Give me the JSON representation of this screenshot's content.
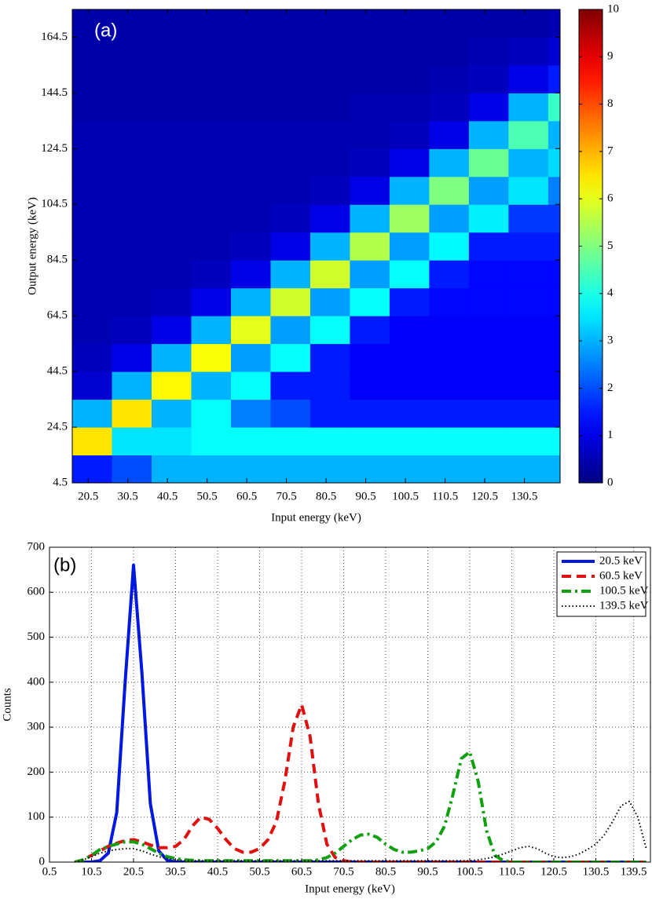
{
  "chart_data": [
    {
      "type": "heatmap",
      "annotation": "(a)",
      "xlabel": "Input energy (keV)",
      "ylabel": "Output energy (keV)",
      "xlim": [
        16.5,
        139.5
      ],
      "ylim": [
        4.5,
        174.5
      ],
      "xticks": [
        20.5,
        30.5,
        40.5,
        50.5,
        60.5,
        70.5,
        80.5,
        90.5,
        100.5,
        110.5,
        120.5,
        130.5
      ],
      "yticks": [
        4.5,
        24.5,
        44.5,
        64.5,
        84.5,
        104.5,
        124.5,
        144.5,
        164.5
      ],
      "colormap": "jet",
      "zlim": [
        0,
        10
      ],
      "zticks": [
        0,
        1,
        2,
        3,
        4,
        5,
        6,
        7,
        8,
        9,
        10
      ],
      "xbins": [
        16.5,
        26.5,
        36.5,
        46.5,
        56.5,
        66.5,
        76.5,
        86.5,
        96.5,
        106.5,
        116.5,
        126.5,
        136.5,
        139.5
      ],
      "ybins": [
        4.5,
        14.5,
        24.5,
        34.5,
        44.5,
        54.5,
        64.5,
        74.5,
        84.5,
        94.5,
        104.5,
        114.5,
        124.5,
        134.5,
        144.5,
        154.5,
        164.5,
        174.5
      ],
      "z": [
        [
          1.5,
          2,
          3,
          3,
          3,
          3,
          3,
          3,
          3,
          3,
          3,
          3,
          3
        ],
        [
          6.5,
          3.5,
          3.5,
          3.8,
          3.8,
          3.8,
          3.8,
          3.8,
          3.8,
          3.8,
          3.8,
          3.8,
          3.8
        ],
        [
          3,
          6.5,
          3,
          3.8,
          2.5,
          2,
          1.5,
          1.5,
          1.5,
          1.5,
          1.5,
          1.5,
          1.5
        ],
        [
          0.8,
          3,
          6.3,
          3,
          3.8,
          1.5,
          1.5,
          1.2,
          1.2,
          1.2,
          1.2,
          1.2,
          1.2
        ],
        [
          0.6,
          1,
          3,
          6.2,
          2.8,
          3.8,
          1.5,
          1.2,
          1.2,
          1.2,
          1.2,
          1.2,
          1.2
        ],
        [
          0.5,
          0.6,
          1,
          3,
          6,
          2.8,
          3.8,
          1.5,
          1.2,
          1.2,
          1.2,
          1.2,
          1.2
        ],
        [
          0.5,
          0.5,
          0.6,
          1,
          3,
          5.8,
          2.8,
          3.8,
          1.5,
          1.3,
          1.3,
          1.3,
          1.3
        ],
        [
          0.5,
          0.5,
          0.5,
          0.6,
          1,
          3,
          5.8,
          2.8,
          3.8,
          1.5,
          1.3,
          1.3,
          1.3
        ],
        [
          0.5,
          0.5,
          0.5,
          0.5,
          0.6,
          1,
          3,
          5.5,
          2.8,
          3.7,
          1.5,
          1.5,
          1.5
        ],
        [
          0.5,
          0.5,
          0.5,
          0.5,
          0.5,
          0.6,
          1,
          3,
          5.3,
          2.8,
          3.6,
          1.8,
          1.8
        ],
        [
          0.5,
          0.5,
          0.5,
          0.5,
          0.5,
          0.5,
          0.6,
          1,
          3,
          5,
          2.8,
          3.5,
          2.5
        ],
        [
          0.5,
          0.5,
          0.5,
          0.5,
          0.5,
          0.5,
          0.5,
          0.6,
          1,
          3,
          4.8,
          3,
          3.4
        ],
        [
          0.5,
          0.5,
          0.5,
          0.5,
          0.5,
          0.5,
          0.5,
          0.5,
          0.6,
          1,
          3,
          4.5,
          3
        ],
        [
          0.4,
          0.4,
          0.4,
          0.4,
          0.4,
          0.4,
          0.4,
          0.5,
          0.5,
          0.6,
          1,
          3,
          4.3
        ],
        [
          0.4,
          0.4,
          0.4,
          0.4,
          0.4,
          0.4,
          0.4,
          0.4,
          0.4,
          0.5,
          0.6,
          1,
          1.5
        ],
        [
          0.4,
          0.4,
          0.4,
          0.4,
          0.4,
          0.4,
          0.4,
          0.4,
          0.4,
          0.4,
          0.5,
          0.6,
          0.8
        ],
        [
          0.4,
          0.4,
          0.4,
          0.4,
          0.4,
          0.4,
          0.4,
          0.4,
          0.4,
          0.4,
          0.4,
          0.4,
          0.5
        ]
      ]
    },
    {
      "type": "line",
      "annotation": "(b)",
      "xlabel": "Input energy (keV)",
      "ylabel": "Counts",
      "xlim": [
        0.5,
        143.5
      ],
      "ylim": [
        0,
        700
      ],
      "xticks": [
        0.5,
        10.5,
        20.5,
        30.5,
        40.5,
        50.5,
        60.5,
        70.5,
        80.5,
        90.5,
        100.5,
        110.5,
        120.5,
        130.5,
        139.5
      ],
      "yticks": [
        0,
        100,
        200,
        300,
        400,
        500,
        600,
        700
      ],
      "grid": true,
      "legend": "top-right",
      "x": [
        6.5,
        8.5,
        10.5,
        12.5,
        14.5,
        16.5,
        18.5,
        20.5,
        22.5,
        24.5,
        26.5,
        28.5,
        30.5,
        32.5,
        34.5,
        36.5,
        38.5,
        40.5,
        42.5,
        44.5,
        46.5,
        48.5,
        50.5,
        52.5,
        54.5,
        56.5,
        58.5,
        60.5,
        62.5,
        64.5,
        66.5,
        68.5,
        70.5,
        72.5,
        74.5,
        76.5,
        78.5,
        80.5,
        82.5,
        84.5,
        86.5,
        88.5,
        90.5,
        92.5,
        94.5,
        96.5,
        98.5,
        100.5,
        102.5,
        104.5,
        106.5,
        108.5,
        110.5,
        112.5,
        114.5,
        116.5,
        118.5,
        120.5,
        122.5,
        124.5,
        126.5,
        128.5,
        130.5,
        132.5,
        134.5,
        136.5,
        138.5,
        140.5,
        142.5
      ],
      "series": [
        {
          "name": "20.5 keV",
          "color": "#0018e0",
          "style": "solid",
          "width": 4,
          "values": [
            0,
            0,
            0,
            3,
            20,
            110,
            400,
            660,
            420,
            130,
            25,
            4,
            0,
            0,
            0,
            0,
            0,
            0,
            0,
            0,
            0,
            0,
            0,
            0,
            0,
            0,
            0,
            0,
            0,
            0,
            0,
            0,
            0,
            0,
            0,
            0,
            0,
            0,
            0,
            0,
            0,
            0,
            0,
            0,
            0,
            0,
            0,
            0,
            0,
            0,
            0,
            0,
            0,
            0,
            0,
            0,
            0,
            0,
            0,
            0,
            0,
            0,
            0,
            0,
            0,
            0,
            0,
            0,
            0
          ]
        },
        {
          "name": "60.5 keV",
          "color": "#e01010",
          "style": "dashed",
          "width": 4,
          "values": [
            0,
            5,
            15,
            25,
            35,
            42,
            48,
            50,
            45,
            38,
            32,
            32,
            35,
            50,
            80,
            100,
            95,
            75,
            50,
            30,
            22,
            22,
            30,
            50,
            90,
            180,
            300,
            350,
            280,
            130,
            40,
            10,
            3,
            0,
            0,
            0,
            0,
            0,
            0,
            0,
            0,
            0,
            0,
            0,
            0,
            0,
            0,
            0,
            0,
            0,
            0,
            0,
            0,
            0,
            0,
            0,
            0,
            0,
            0,
            0,
            0,
            0,
            0,
            0,
            0,
            0,
            0,
            0,
            0
          ]
        },
        {
          "name": "100.5 keV",
          "color": "#10a010",
          "style": "dashdot",
          "width": 4,
          "values": [
            0,
            5,
            15,
            28,
            35,
            40,
            45,
            45,
            40,
            30,
            20,
            12,
            8,
            5,
            4,
            3,
            3,
            3,
            3,
            3,
            3,
            3,
            3,
            3,
            3,
            3,
            3,
            3,
            3,
            5,
            10,
            20,
            35,
            50,
            60,
            62,
            55,
            40,
            28,
            22,
            22,
            25,
            30,
            45,
            80,
            150,
            230,
            245,
            180,
            70,
            15,
            3,
            0,
            0,
            0,
            0,
            0,
            0,
            0,
            0,
            0,
            0,
            0,
            0,
            0,
            0,
            0,
            0,
            0
          ]
        },
        {
          "name": "139.5 keV",
          "color": "#000000",
          "style": "dotted",
          "width": 2,
          "values": [
            0,
            5,
            12,
            20,
            25,
            28,
            30,
            30,
            25,
            18,
            12,
            8,
            5,
            4,
            3,
            3,
            3,
            3,
            3,
            3,
            3,
            3,
            3,
            3,
            3,
            3,
            3,
            3,
            3,
            3,
            3,
            3,
            3,
            3,
            3,
            3,
            3,
            3,
            3,
            3,
            3,
            3,
            3,
            3,
            3,
            3,
            3,
            3,
            5,
            8,
            12,
            18,
            25,
            32,
            35,
            30,
            20,
            12,
            10,
            12,
            18,
            28,
            40,
            60,
            90,
            125,
            135,
            100,
            30
          ]
        }
      ]
    }
  ]
}
